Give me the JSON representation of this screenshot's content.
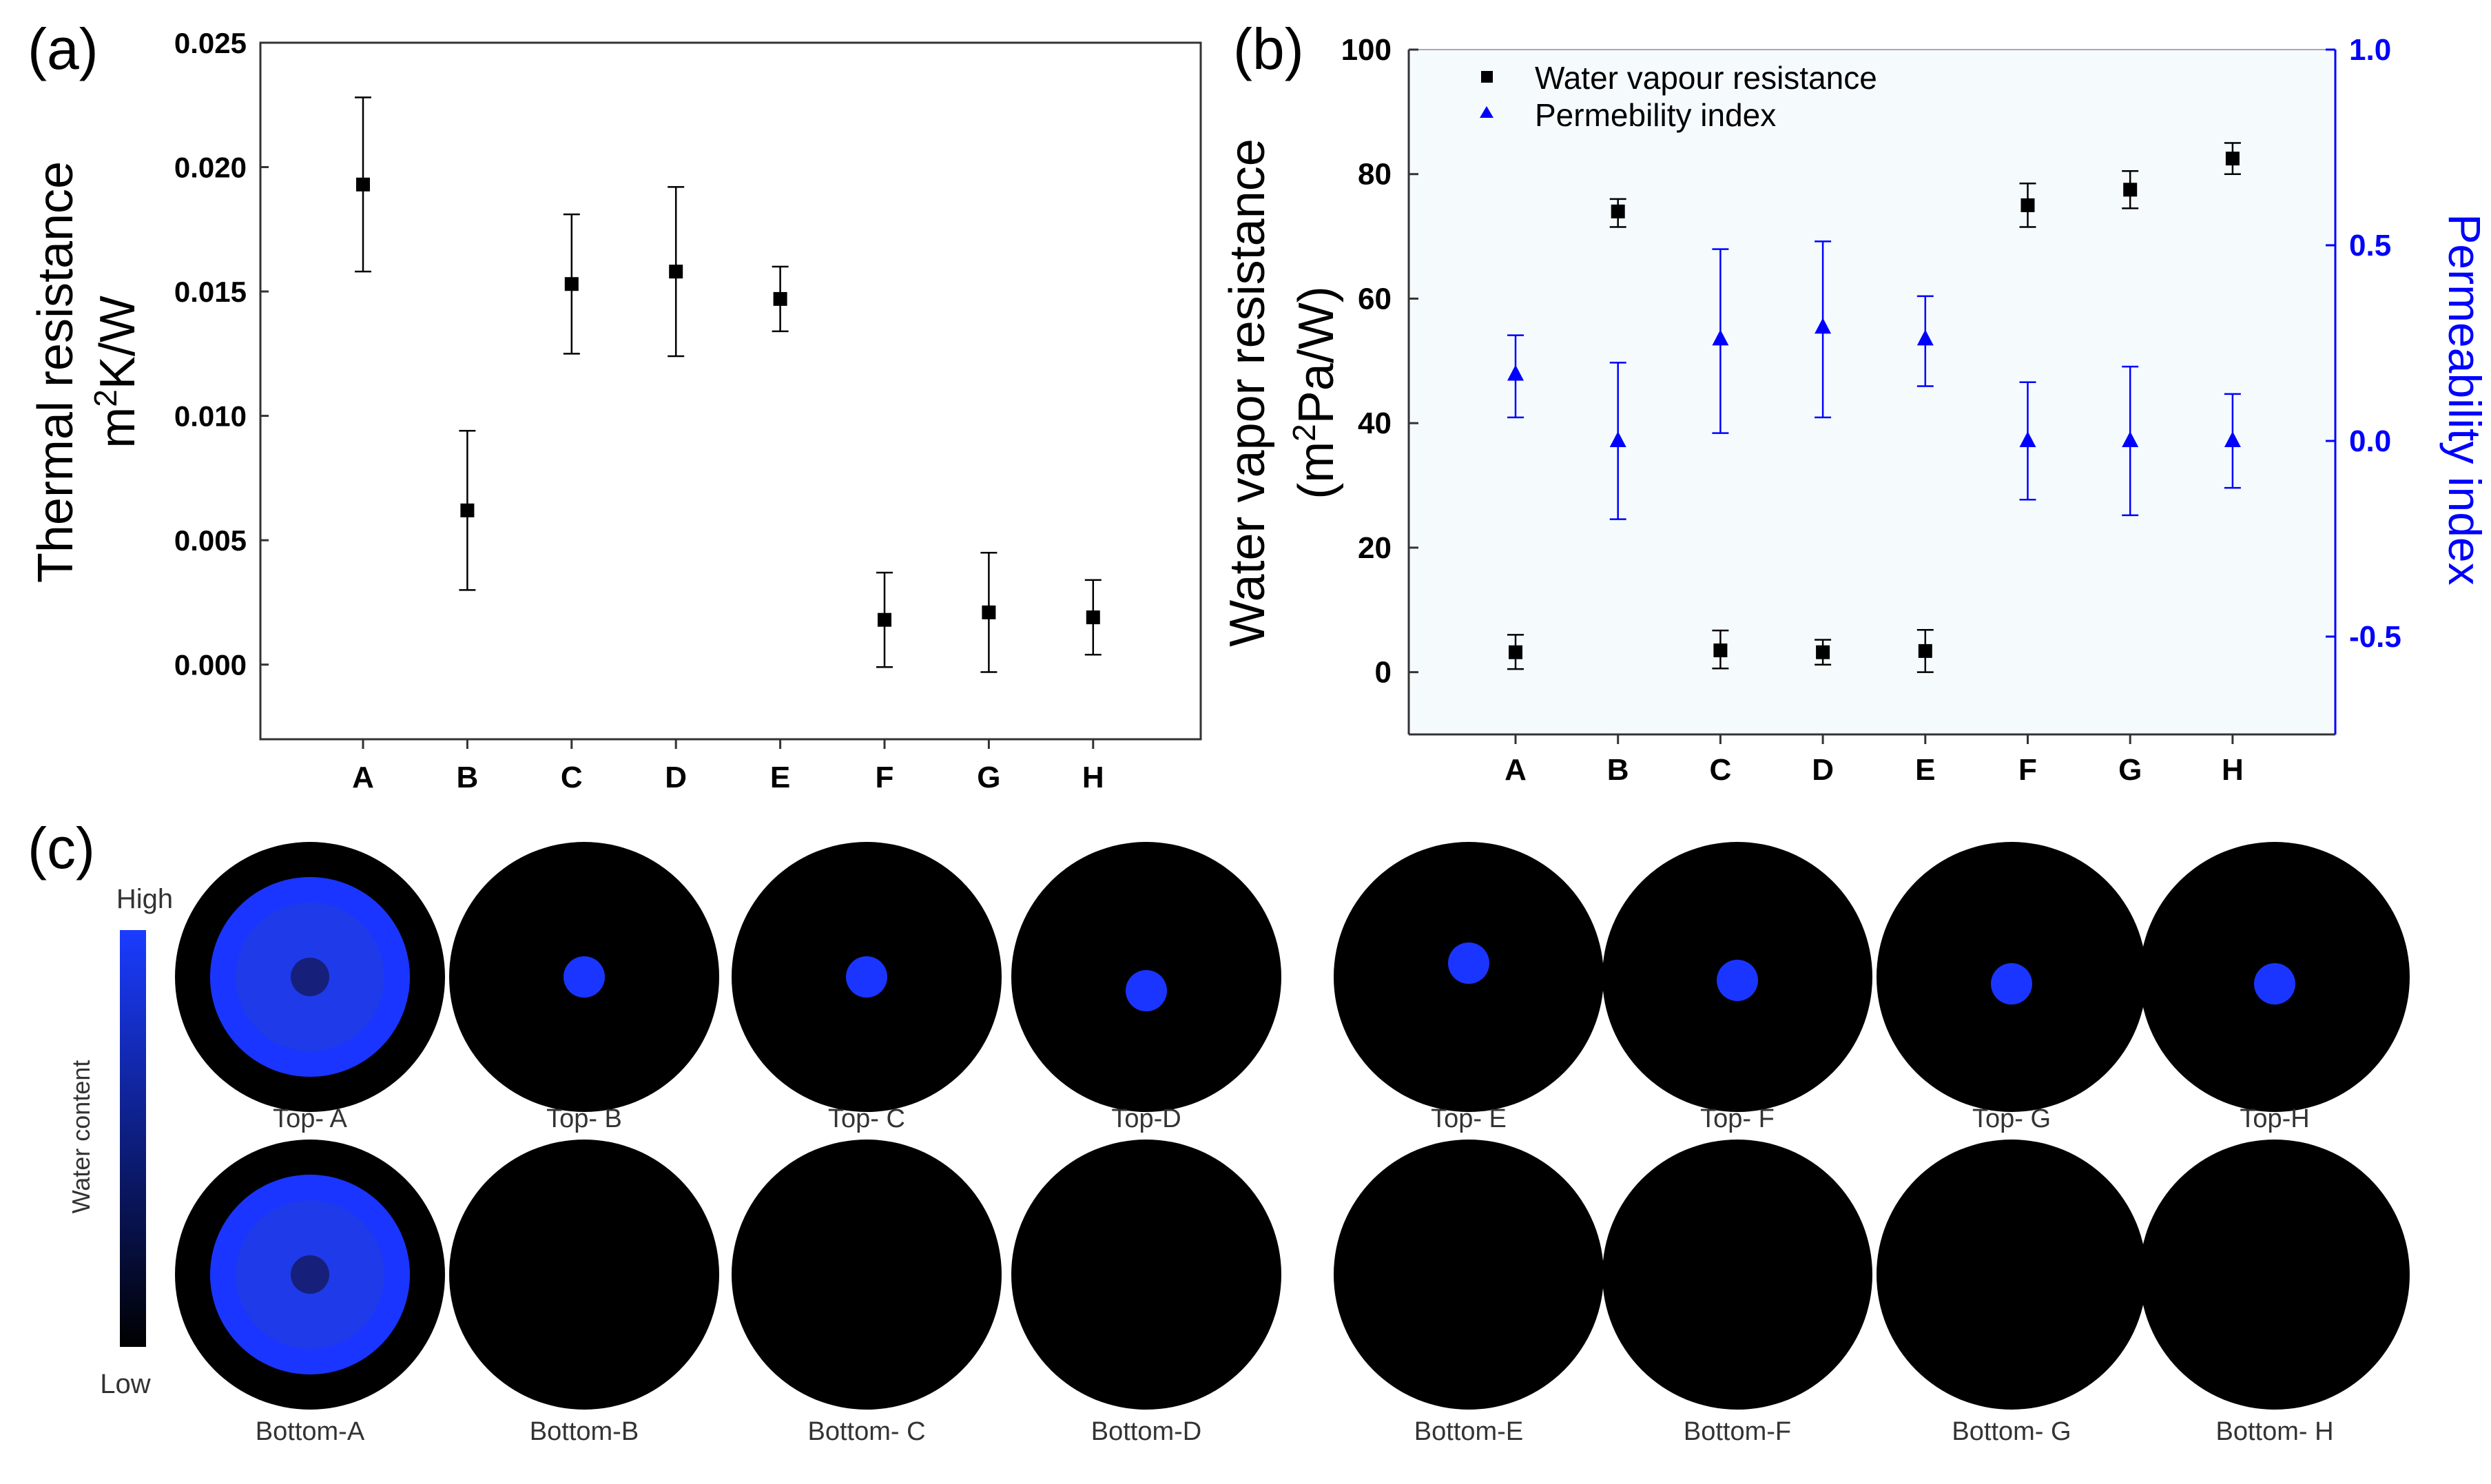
{
  "chart_data": [
    {
      "panel": "(a)",
      "type": "scatter",
      "title": "",
      "xlabel": "",
      "ylabel_line1": "Thermal resistance",
      "ylabel_line2_base": "m",
      "ylabel_line2_sup": "2",
      "ylabel_line2_rest": "K/W",
      "categories": [
        "A",
        "B",
        "C",
        "D",
        "E",
        "F",
        "G",
        "H"
      ],
      "ylim": [
        -0.003,
        0.025
      ],
      "yticks": [
        "0.000",
        "0.005",
        "0.010",
        "0.015",
        "0.020",
        "0.025"
      ],
      "series": [
        {
          "name": "Thermal resistance",
          "marker": "square",
          "color": "#000000",
          "values": [
            0.0193,
            0.0062,
            0.0153,
            0.0158,
            0.0147,
            0.0018,
            0.0021,
            0.0019
          ],
          "err_low": [
            0.0158,
            0.003,
            0.0125,
            0.0124,
            0.0134,
            -0.0001,
            -0.0003,
            0.0004
          ],
          "err_high": [
            0.0228,
            0.0094,
            0.0181,
            0.0192,
            0.016,
            0.0037,
            0.0045,
            0.0034
          ]
        }
      ]
    },
    {
      "panel": "(b)",
      "type": "scatter",
      "title": "",
      "xlabel": "",
      "ylabel_line1": "Water vapor resistance",
      "ylabel_line2_base": "(m",
      "ylabel_line2_sup": "2",
      "ylabel_line2_rest": "Pa/W)",
      "y2label": "Permeability index",
      "categories": [
        "A",
        "B",
        "C",
        "D",
        "E",
        "F",
        "G",
        "H"
      ],
      "ylim": [
        -10,
        100
      ],
      "yticks": [
        "0",
        "20",
        "40",
        "60",
        "80",
        "100"
      ],
      "y2lim": [
        -0.75,
        1.0
      ],
      "y2ticks": [
        "-0.5",
        "0.0",
        "0.5",
        "1.0"
      ],
      "legend_position": "top-left",
      "series": [
        {
          "name": "Water vapour resistance",
          "axis": "left",
          "marker": "square",
          "color": "#000000",
          "values": [
            3.2,
            74.0,
            3.5,
            3.2,
            3.4,
            75.0,
            77.5,
            82.5
          ],
          "err_low": [
            0.5,
            71.5,
            0.6,
            1.2,
            0.0,
            71.5,
            74.5,
            80.0
          ],
          "err_high": [
            6.0,
            76.0,
            6.7,
            5.2,
            6.8,
            78.5,
            80.5,
            85.0
          ]
        },
        {
          "name": "Permebility index",
          "axis": "right",
          "marker": "triangle",
          "color": "#0000ff",
          "values": [
            0.17,
            0.0,
            0.26,
            0.29,
            0.26,
            0.0,
            0.0,
            0.0
          ],
          "err_low": [
            0.06,
            -0.2,
            0.02,
            0.06,
            0.14,
            -0.15,
            -0.19,
            -0.12
          ],
          "err_high": [
            0.27,
            0.2,
            0.49,
            0.51,
            0.37,
            0.15,
            0.19,
            0.12
          ]
        }
      ]
    }
  ],
  "panel_c": {
    "label": "(c)",
    "colorbar": {
      "high_label": "High",
      "low_label": "Low",
      "title": "Water content",
      "color_high": "#1a3cff",
      "color_low": "#000000"
    },
    "disc_color": "#000000",
    "wet_color": "#1a35ff",
    "wet_inner_color": "#1f3ae8",
    "wet_core_color": "#16207a",
    "samples": [
      {
        "top_label": "Top- A",
        "bottom_label": "Bottom-A",
        "top_wet": "large",
        "bottom_wet": "large"
      },
      {
        "top_label": "Top- B",
        "bottom_label": "Bottom-B",
        "top_wet": "spot",
        "bottom_wet": "none"
      },
      {
        "top_label": "Top- C",
        "bottom_label": "Bottom- C",
        "top_wet": "spot",
        "bottom_wet": "none"
      },
      {
        "top_label": "Top-D",
        "bottom_label": "Bottom-D",
        "top_wet": "spot",
        "bottom_wet": "none"
      },
      {
        "top_label": "Top- E",
        "bottom_label": "Bottom-E",
        "top_wet": "spot",
        "bottom_wet": "none"
      },
      {
        "top_label": "Top- F",
        "bottom_label": "Bottom-F",
        "top_wet": "spot",
        "bottom_wet": "none"
      },
      {
        "top_label": "Top- G",
        "bottom_label": "Bottom- G",
        "top_wet": "spot",
        "bottom_wet": "none"
      },
      {
        "top_label": "Top-H",
        "bottom_label": "Bottom- H",
        "top_wet": "spot",
        "bottom_wet": "none"
      }
    ]
  }
}
